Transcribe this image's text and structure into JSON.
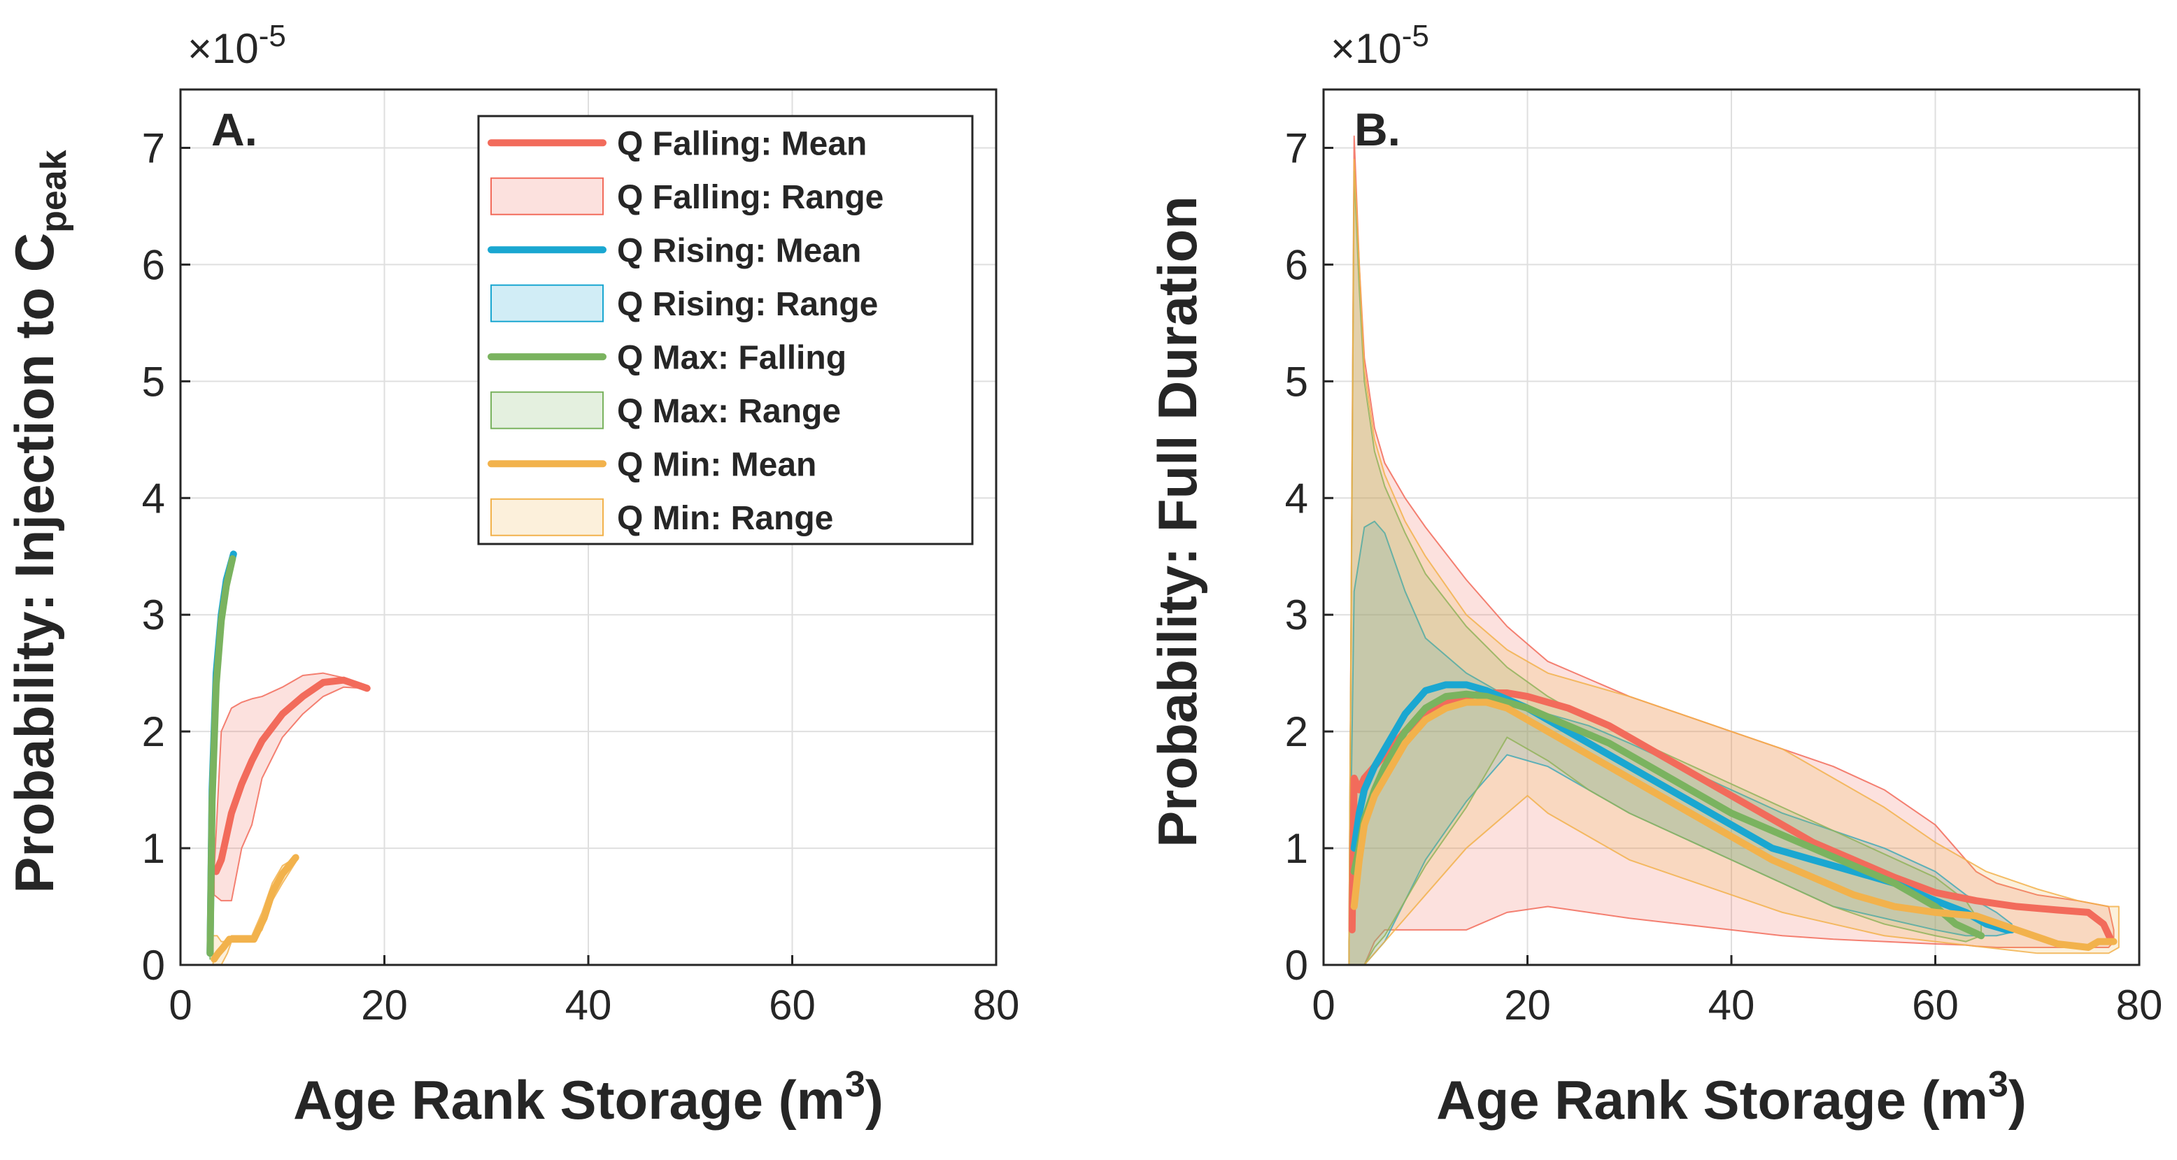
{
  "chart_data": [
    {
      "type": "line",
      "panel": "A.",
      "xlabel": "Age Rank Storage (m",
      "xlabel_sup": "3",
      "xlabel_end": ")",
      "ylabel": "Probability: Injection to C",
      "ylabel_sub": "peak",
      "xlim": [
        0,
        80
      ],
      "ylim": [
        0,
        7.5
      ],
      "xticks": [
        0,
        20,
        40,
        60,
        80
      ],
      "yticks": [
        0,
        1,
        2,
        3,
        4,
        5,
        6,
        7
      ],
      "y_multiplier": "×10",
      "y_multiplier_exp": "-5",
      "grid": true,
      "legend": {
        "placement": "top-right",
        "entries": [
          {
            "label": "Q Falling: Mean",
            "kind": "line",
            "color": "#f26b5b"
          },
          {
            "label": "Q Falling: Range",
            "kind": "patch",
            "color": "#f26b5b"
          },
          {
            "label": "Q Rising: Mean",
            "kind": "line",
            "color": "#1aa7d1"
          },
          {
            "label": "Q Rising: Range",
            "kind": "patch",
            "color": "#1aa7d1"
          },
          {
            "label": "Q Max: Falling",
            "kind": "line",
            "color": "#7ab35f"
          },
          {
            "label": "Q Max: Range",
            "kind": "patch",
            "color": "#7ab35f"
          },
          {
            "label": "Q Min: Mean",
            "kind": "line",
            "color": "#f2b24c"
          },
          {
            "label": "Q Min: Range",
            "kind": "patch",
            "color": "#f2b24c"
          }
        ]
      },
      "series": [
        {
          "name": "Q Falling: Range",
          "kind": "range",
          "color": "#f26b5b",
          "x": [
            3.3,
            4,
            5,
            6,
            7,
            8,
            10,
            12,
            14,
            16,
            18,
            18.3
          ],
          "upper": [
            0.8,
            2.0,
            2.2,
            2.25,
            2.28,
            2.3,
            2.38,
            2.48,
            2.5,
            2.46,
            2.4,
            2.37
          ],
          "lower": [
            0.6,
            0.55,
            0.55,
            1.0,
            1.2,
            1.6,
            1.95,
            2.15,
            2.3,
            2.38,
            2.37,
            2.37
          ]
        },
        {
          "name": "Q Falling: Mean",
          "kind": "line",
          "color": "#f26b5b",
          "x": [
            3.5,
            4,
            5,
            6,
            7,
            8,
            10,
            12,
            14,
            16,
            18.3
          ],
          "y": [
            0.8,
            0.9,
            1.3,
            1.55,
            1.75,
            1.92,
            2.15,
            2.3,
            2.42,
            2.44,
            2.37
          ]
        },
        {
          "name": "Q Max: Range",
          "kind": "range",
          "color": "#7ab35f",
          "x": [
            2.9,
            3.2,
            3.6,
            4,
            4.5,
            5.2
          ],
          "upper": [
            0.3,
            1.8,
            2.6,
            3.0,
            3.3,
            3.5
          ],
          "lower": [
            0.05,
            1.2,
            2.2,
            2.8,
            3.2,
            3.45
          ]
        },
        {
          "name": "Q Rising: Mean",
          "kind": "line",
          "color": "#1aa7d1",
          "x": [
            2.9,
            3.1,
            3.5,
            4,
            4.5,
            5.2
          ],
          "y": [
            0.1,
            1.5,
            2.5,
            3.0,
            3.3,
            3.52
          ]
        },
        {
          "name": "Q Max: Falling",
          "kind": "line",
          "color": "#7ab35f",
          "x": [
            2.9,
            3.1,
            3.5,
            4,
            4.5,
            5.1
          ],
          "y": [
            0.1,
            1.4,
            2.4,
            2.95,
            3.25,
            3.48
          ]
        },
        {
          "name": "Q Min: Range",
          "kind": "range",
          "color": "#f2b24c",
          "x": [
            3.2,
            3.6,
            4,
            4.6,
            5,
            6,
            7,
            8,
            9,
            10,
            11.3
          ],
          "upper": [
            0.25,
            0.25,
            0.2,
            0.2,
            0.25,
            0.25,
            0.25,
            0.45,
            0.7,
            0.85,
            0.92
          ],
          "lower": [
            0.0,
            0.0,
            0.0,
            0.1,
            0.2,
            0.2,
            0.2,
            0.3,
            0.55,
            0.7,
            0.88
          ]
        },
        {
          "name": "Q Min: Mean",
          "kind": "line",
          "color": "#f2b24c",
          "x": [
            3.3,
            3.7,
            4.2,
            4.8,
            5.2,
            6,
            7.2,
            8.2,
            9,
            10,
            11.3
          ],
          "y": [
            0.05,
            0.1,
            0.15,
            0.22,
            0.22,
            0.22,
            0.22,
            0.4,
            0.62,
            0.78,
            0.92
          ]
        }
      ]
    },
    {
      "type": "line",
      "panel": "B.",
      "xlabel": "Age Rank Storage (m",
      "xlabel_sup": "3",
      "xlabel_end": ")",
      "ylabel": "Probability: Full Duration",
      "xlim": [
        0,
        80
      ],
      "ylim": [
        0,
        7.5
      ],
      "xticks": [
        0,
        20,
        40,
        60,
        80
      ],
      "yticks": [
        0,
        1,
        2,
        3,
        4,
        5,
        6,
        7
      ],
      "y_multiplier": "×10",
      "y_multiplier_exp": "-5",
      "grid": true,
      "series": [
        {
          "name": "Q Falling: Range",
          "kind": "range",
          "color": "#f26b5b",
          "x": [
            2.5,
            3,
            3.5,
            4,
            5,
            6,
            8,
            10,
            14,
            18,
            22,
            26,
            30,
            35,
            40,
            45,
            50,
            55,
            60,
            63,
            64,
            66,
            70,
            74,
            77,
            77.5
          ],
          "upper": [
            0.2,
            7.1,
            6.0,
            5.2,
            4.6,
            4.3,
            4.0,
            3.75,
            3.3,
            2.9,
            2.6,
            2.45,
            2.3,
            2.15,
            2.0,
            1.85,
            1.7,
            1.5,
            1.2,
            0.9,
            0.8,
            0.7,
            0.6,
            0.55,
            0.5,
            0.3
          ],
          "lower": [
            0.0,
            0.0,
            0.0,
            0.0,
            0.2,
            0.3,
            0.3,
            0.3,
            0.3,
            0.45,
            0.5,
            0.45,
            0.4,
            0.35,
            0.3,
            0.25,
            0.22,
            0.2,
            0.18,
            0.17,
            0.16,
            0.15,
            0.15,
            0.15,
            0.15,
            0.2
          ]
        },
        {
          "name": "Q Rising: Range",
          "kind": "range",
          "color": "#1aa7d1",
          "x": [
            2.5,
            3,
            4,
            5,
            6,
            8,
            10,
            14,
            18,
            22,
            26,
            30,
            35,
            40,
            45,
            50,
            55,
            60,
            63,
            66,
            67.5
          ],
          "upper": [
            0.2,
            3.2,
            3.75,
            3.8,
            3.7,
            3.2,
            2.8,
            2.5,
            2.3,
            2.15,
            2.05,
            1.9,
            1.7,
            1.5,
            1.3,
            1.15,
            1.0,
            0.8,
            0.6,
            0.45,
            0.35
          ],
          "lower": [
            0.0,
            0.0,
            0.0,
            0.1,
            0.2,
            0.55,
            0.9,
            1.4,
            1.8,
            1.7,
            1.5,
            1.3,
            1.1,
            0.9,
            0.7,
            0.5,
            0.4,
            0.3,
            0.25,
            0.25,
            0.28
          ]
        },
        {
          "name": "Q Max: Range",
          "kind": "range",
          "color": "#7ab35f",
          "x": [
            2.5,
            3,
            3.5,
            4,
            5,
            6,
            8,
            10,
            14,
            18,
            22,
            26,
            30,
            35,
            40,
            45,
            50,
            55,
            60,
            63,
            64.5
          ],
          "upper": [
            0.2,
            6.8,
            5.8,
            5.0,
            4.4,
            4.1,
            3.7,
            3.35,
            2.9,
            2.55,
            2.3,
            2.1,
            1.95,
            1.75,
            1.55,
            1.35,
            1.15,
            0.95,
            0.75,
            0.55,
            0.35
          ],
          "lower": [
            0.0,
            0.0,
            0.0,
            0.0,
            0.15,
            0.25,
            0.55,
            0.85,
            1.35,
            1.95,
            1.75,
            1.5,
            1.3,
            1.1,
            0.9,
            0.7,
            0.5,
            0.35,
            0.25,
            0.2,
            0.25
          ]
        },
        {
          "name": "Q Min: Range",
          "kind": "range",
          "color": "#f2b24c",
          "x": [
            2.5,
            3,
            3.5,
            4,
            5,
            6,
            8,
            10,
            14,
            18,
            20,
            22,
            26,
            30,
            35,
            40,
            45,
            50,
            55,
            60,
            65,
            70,
            74,
            77,
            78
          ],
          "upper": [
            0.2,
            6.9,
            6.0,
            5.1,
            4.5,
            4.2,
            3.8,
            3.5,
            3.0,
            2.7,
            2.6,
            2.5,
            2.4,
            2.3,
            2.15,
            2.0,
            1.85,
            1.6,
            1.35,
            1.05,
            0.8,
            0.65,
            0.55,
            0.5,
            0.5
          ],
          "lower": [
            0.0,
            0.0,
            0.0,
            0.0,
            0.1,
            0.2,
            0.4,
            0.6,
            1.0,
            1.3,
            1.45,
            1.3,
            1.1,
            0.9,
            0.75,
            0.6,
            0.45,
            0.35,
            0.25,
            0.2,
            0.15,
            0.1,
            0.1,
            0.1,
            0.15
          ]
        },
        {
          "name": "Q Falling: Mean",
          "kind": "line",
          "color": "#f26b5b",
          "x": [
            2.8,
            3,
            3.5,
            4,
            5,
            6,
            8,
            10,
            12,
            14,
            16,
            18,
            20,
            24,
            28,
            32,
            36,
            40,
            44,
            48,
            52,
            56,
            60,
            64,
            68,
            72,
            75,
            76.5,
            77.3
          ],
          "y": [
            0.3,
            1.6,
            1.5,
            1.6,
            1.7,
            1.8,
            2.0,
            2.15,
            2.25,
            2.3,
            2.33,
            2.33,
            2.3,
            2.2,
            2.05,
            1.85,
            1.65,
            1.45,
            1.25,
            1.05,
            0.9,
            0.75,
            0.62,
            0.55,
            0.5,
            0.47,
            0.45,
            0.35,
            0.2
          ]
        },
        {
          "name": "Q Rising: Mean",
          "kind": "line",
          "color": "#1aa7d1",
          "x": [
            3,
            3.5,
            4,
            5,
            6,
            8,
            10,
            12,
            14,
            16,
            20,
            24,
            28,
            32,
            36,
            40,
            44,
            48,
            52,
            56,
            60,
            63,
            65,
            67,
            67.5
          ],
          "y": [
            1.0,
            1.3,
            1.5,
            1.7,
            1.85,
            2.15,
            2.35,
            2.4,
            2.4,
            2.35,
            2.2,
            2.0,
            1.8,
            1.6,
            1.4,
            1.2,
            1.0,
            0.9,
            0.8,
            0.7,
            0.55,
            0.45,
            0.35,
            0.3,
            0.3
          ]
        },
        {
          "name": "Q Max: Falling",
          "kind": "line",
          "color": "#7ab35f",
          "x": [
            3,
            3.5,
            4,
            5,
            6,
            8,
            10,
            12,
            14,
            16,
            20,
            24,
            28,
            32,
            36,
            40,
            44,
            48,
            52,
            56,
            60,
            62,
            64.5
          ],
          "y": [
            0.8,
            1.0,
            1.25,
            1.5,
            1.7,
            2.0,
            2.2,
            2.3,
            2.32,
            2.3,
            2.2,
            2.05,
            1.9,
            1.7,
            1.5,
            1.3,
            1.15,
            1.0,
            0.85,
            0.7,
            0.5,
            0.35,
            0.25
          ]
        },
        {
          "name": "Q Min: Mean",
          "kind": "line",
          "color": "#f2b24c",
          "x": [
            3,
            3.5,
            4,
            5,
            6,
            8,
            10,
            12,
            14,
            16,
            18,
            20,
            24,
            28,
            32,
            36,
            40,
            44,
            48,
            52,
            56,
            60,
            64,
            68,
            72,
            75,
            76,
            77.5
          ],
          "y": [
            0.5,
            0.9,
            1.2,
            1.45,
            1.6,
            1.9,
            2.1,
            2.2,
            2.25,
            2.25,
            2.2,
            2.1,
            1.9,
            1.7,
            1.5,
            1.3,
            1.1,
            0.9,
            0.75,
            0.6,
            0.5,
            0.45,
            0.42,
            0.3,
            0.18,
            0.15,
            0.2,
            0.2
          ]
        }
      ]
    }
  ]
}
